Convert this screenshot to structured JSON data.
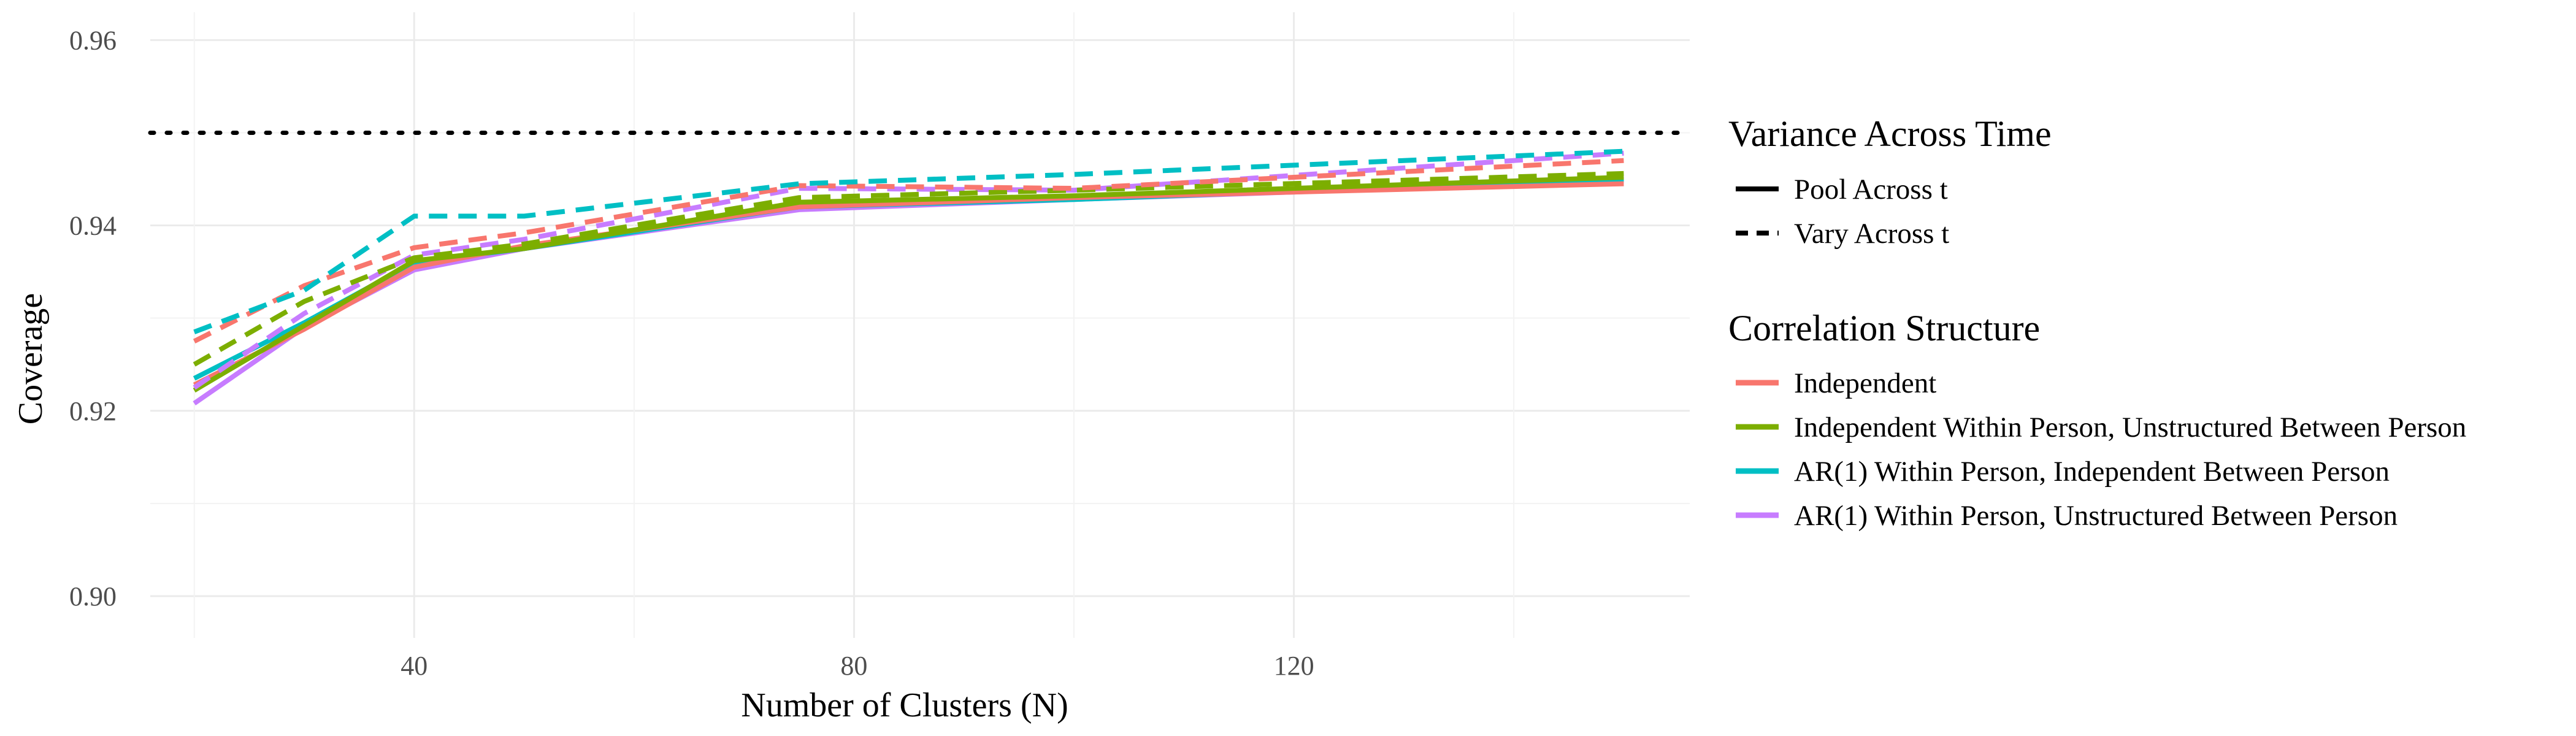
{
  "chart_data": {
    "type": "line",
    "xlabel": "Number of Clusters (N)",
    "ylabel": "Coverage",
    "xlim": [
      16,
      156
    ],
    "ylim": [
      0.8955,
      0.963
    ],
    "x_ticks": [
      40,
      80,
      120
    ],
    "y_ticks": [
      0.9,
      0.92,
      0.94,
      0.96
    ],
    "x_tick_labels": [
      "40",
      "80",
      "120"
    ],
    "y_tick_labels": [
      "0.90",
      "0.92",
      "0.94",
      "0.96"
    ],
    "grid": true,
    "reference_line": {
      "y": 0.95,
      "style": "dotted",
      "color": "#000000"
    },
    "legend_position": "right",
    "legends": {
      "linetype": {
        "title": "Variance Across Time",
        "items": [
          {
            "label": "Pool Across t",
            "dash": "solid"
          },
          {
            "label": "Vary Across t",
            "dash": "dashed"
          }
        ]
      },
      "color": {
        "title": "Correlation Structure",
        "items": [
          {
            "label": "Independent",
            "color": "#F8766D"
          },
          {
            "label": "Independent Within Person, Unstructured Between Person",
            "color": "#7CAE00"
          },
          {
            "label": "AR(1) Within Person, Independent Between Person",
            "color": "#00BFC4"
          },
          {
            "label": "AR(1) Within Person, Unstructured Between Person",
            "color": "#C77CFF"
          }
        ]
      }
    },
    "series": [
      {
        "structure": "AR(1) Within Person, Unstructured Between Person",
        "variance": "Pool Across t",
        "color": "#C77CFF",
        "dash": "solid",
        "x": [
          20,
          30,
          40,
          50,
          75,
          100,
          150
        ],
        "y": [
          0.9208,
          0.929,
          0.9352,
          0.9375,
          0.9417,
          0.9428,
          0.9448
        ]
      },
      {
        "structure": "AR(1) Within Person, Independent Between Person",
        "variance": "Pool Across t",
        "color": "#00BFC4",
        "dash": "solid",
        "x": [
          20,
          30,
          40,
          50,
          75,
          100,
          150
        ],
        "y": [
          0.9235,
          0.9295,
          0.936,
          0.9375,
          0.942,
          0.9428,
          0.945
        ]
      },
      {
        "structure": "Independent",
        "variance": "Pool Across t",
        "color": "#F8766D",
        "dash": "solid",
        "x": [
          20,
          30,
          40,
          50,
          75,
          100,
          150
        ],
        "y": [
          0.9228,
          0.9288,
          0.9355,
          0.9378,
          0.942,
          0.943,
          0.9445
        ]
      },
      {
        "structure": "Independent Within Person, Unstructured Between Person",
        "variance": "Pool Across t",
        "color": "#7CAE00",
        "dash": "solid",
        "x": [
          20,
          30,
          40,
          50,
          75,
          100,
          150
        ],
        "y": [
          0.9222,
          0.9292,
          0.9362,
          0.9375,
          0.9425,
          0.9432,
          0.9452
        ]
      },
      {
        "structure": "AR(1) Within Person, Unstructured Between Person",
        "variance": "Vary Across t",
        "color": "#C77CFF",
        "dash": "dashed",
        "x": [
          20,
          30,
          40,
          50,
          75,
          100,
          150
        ],
        "y": [
          0.9225,
          0.9305,
          0.9368,
          0.9385,
          0.944,
          0.9438,
          0.9478
        ]
      },
      {
        "structure": "Independent Within Person, Unstructured Between Person",
        "variance": "Vary Across t",
        "color": "#7CAE00",
        "dash": "dashed",
        "x": [
          20,
          30,
          40,
          50,
          75,
          100,
          150
        ],
        "y": [
          0.925,
          0.9318,
          0.9365,
          0.938,
          0.943,
          0.9438,
          0.9456
        ]
      },
      {
        "structure": "Independent",
        "variance": "Vary Across t",
        "color": "#F8766D",
        "dash": "dashed",
        "x": [
          20,
          30,
          40,
          50,
          75,
          100,
          150
        ],
        "y": [
          0.9275,
          0.9335,
          0.9376,
          0.9392,
          0.9443,
          0.944,
          0.947
        ]
      },
      {
        "structure": "AR(1) Within Person, Independent Between Person",
        "variance": "Vary Across t",
        "color": "#00BFC4",
        "dash": "dashed",
        "x": [
          20,
          30,
          40,
          50,
          75,
          100,
          150
        ],
        "y": [
          0.9285,
          0.933,
          0.941,
          0.941,
          0.9445,
          0.9455,
          0.948
        ]
      }
    ]
  }
}
